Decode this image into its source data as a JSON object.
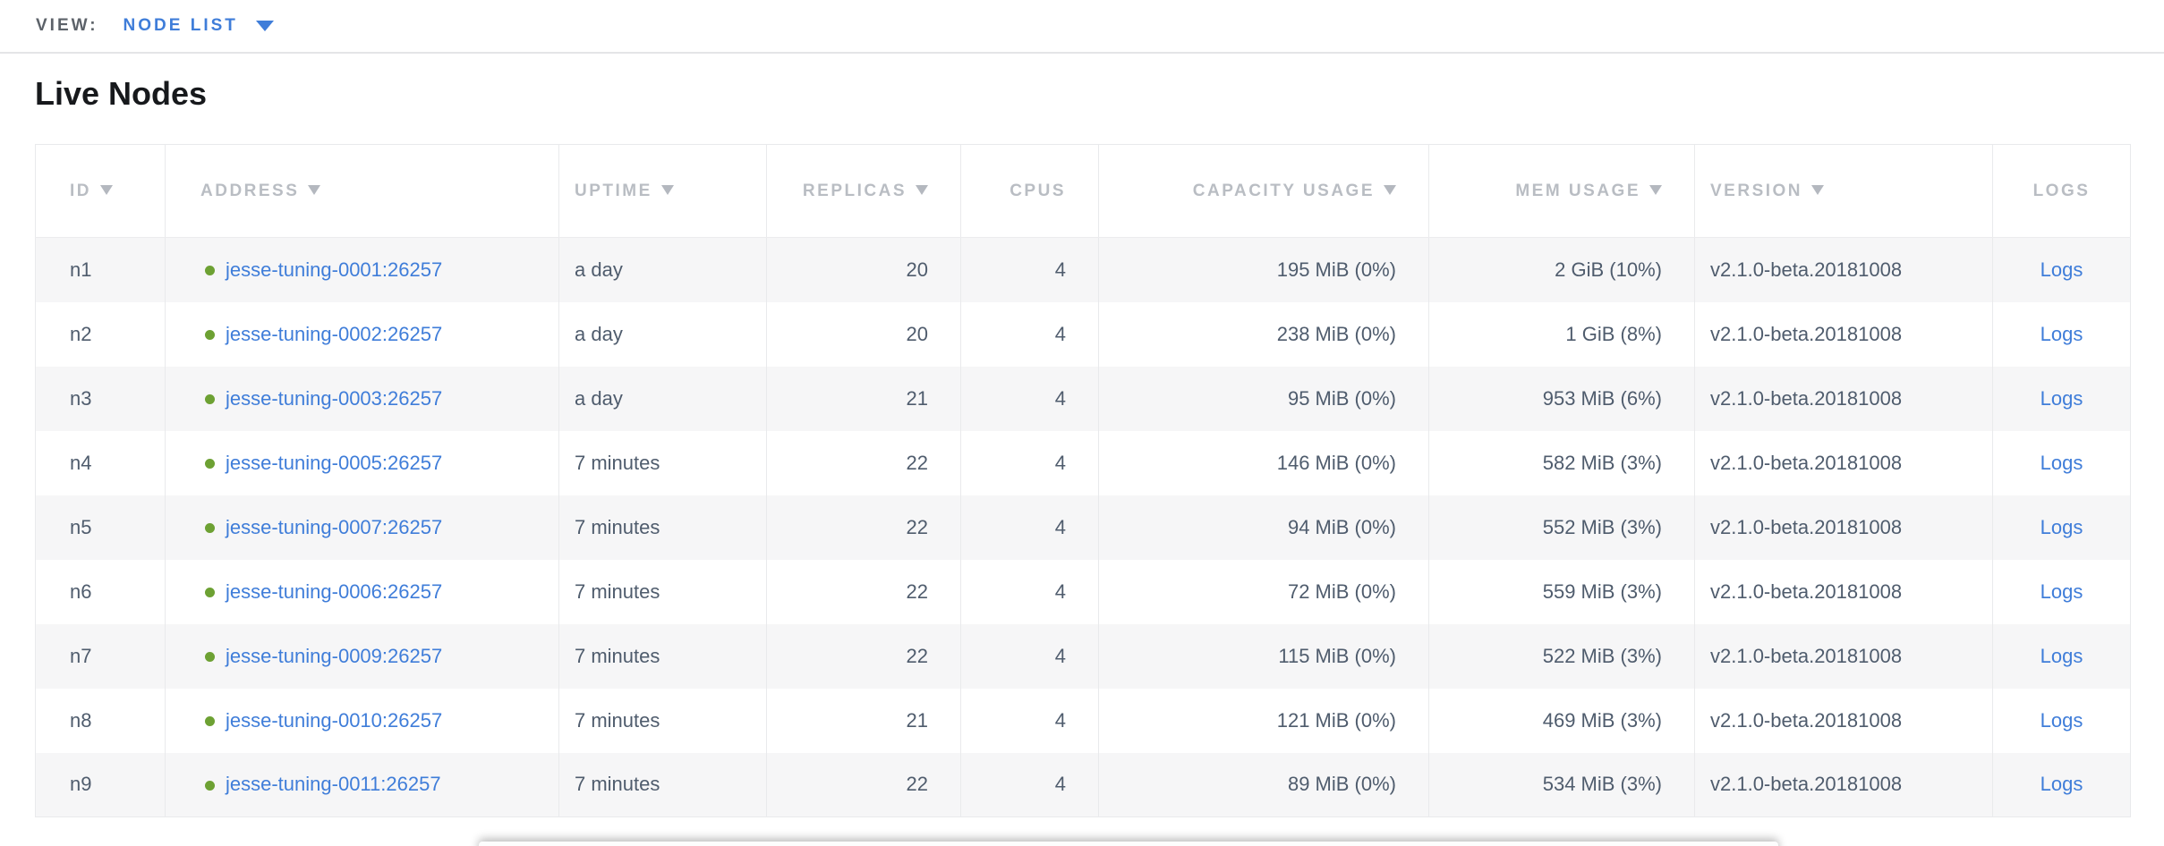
{
  "topbar": {
    "view_label": "VIEW:",
    "view_value": "NODE LIST"
  },
  "page": {
    "title": "Live Nodes"
  },
  "table": {
    "columns": [
      {
        "key": "id",
        "label": "ID",
        "sortable": true
      },
      {
        "key": "address",
        "label": "ADDRESS",
        "sortable": true
      },
      {
        "key": "uptime",
        "label": "UPTIME",
        "sortable": true
      },
      {
        "key": "replicas",
        "label": "REPLICAS",
        "sortable": true
      },
      {
        "key": "cpus",
        "label": "CPUS",
        "sortable": false
      },
      {
        "key": "capacity",
        "label": "CAPACITY USAGE",
        "sortable": true
      },
      {
        "key": "mem",
        "label": "MEM USAGE",
        "sortable": true
      },
      {
        "key": "version",
        "label": "VERSION",
        "sortable": true
      },
      {
        "key": "logs",
        "label": "LOGS",
        "sortable": false
      }
    ],
    "rows": [
      {
        "id": "n1",
        "status": "healthy",
        "address": "jesse-tuning-0001:26257",
        "uptime": "a day",
        "replicas": "20",
        "cpus": "4",
        "capacity": "195 MiB (0%)",
        "mem": "2 GiB (10%)",
        "version": "v2.1.0-beta.20181008",
        "logs": "Logs"
      },
      {
        "id": "n2",
        "status": "healthy",
        "address": "jesse-tuning-0002:26257",
        "uptime": "a day",
        "replicas": "20",
        "cpus": "4",
        "capacity": "238 MiB (0%)",
        "mem": "1 GiB (8%)",
        "version": "v2.1.0-beta.20181008",
        "logs": "Logs"
      },
      {
        "id": "n3",
        "status": "healthy",
        "address": "jesse-tuning-0003:26257",
        "uptime": "a day",
        "replicas": "21",
        "cpus": "4",
        "capacity": "95 MiB (0%)",
        "mem": "953 MiB (6%)",
        "version": "v2.1.0-beta.20181008",
        "logs": "Logs"
      },
      {
        "id": "n4",
        "status": "healthy",
        "address": "jesse-tuning-0005:26257",
        "uptime": "7 minutes",
        "replicas": "22",
        "cpus": "4",
        "capacity": "146 MiB (0%)",
        "mem": "582 MiB (3%)",
        "version": "v2.1.0-beta.20181008",
        "logs": "Logs"
      },
      {
        "id": "n5",
        "status": "healthy",
        "address": "jesse-tuning-0007:26257",
        "uptime": "7 minutes",
        "replicas": "22",
        "cpus": "4",
        "capacity": "94 MiB (0%)",
        "mem": "552 MiB (3%)",
        "version": "v2.1.0-beta.20181008",
        "logs": "Logs"
      },
      {
        "id": "n6",
        "status": "healthy",
        "address": "jesse-tuning-0006:26257",
        "uptime": "7 minutes",
        "replicas": "22",
        "cpus": "4",
        "capacity": "72 MiB (0%)",
        "mem": "559 MiB (3%)",
        "version": "v2.1.0-beta.20181008",
        "logs": "Logs"
      },
      {
        "id": "n7",
        "status": "healthy",
        "address": "jesse-tuning-0009:26257",
        "uptime": "7 minutes",
        "replicas": "22",
        "cpus": "4",
        "capacity": "115 MiB (0%)",
        "mem": "522 MiB (3%)",
        "version": "v2.1.0-beta.20181008",
        "logs": "Logs"
      },
      {
        "id": "n8",
        "status": "healthy",
        "address": "jesse-tuning-0010:26257",
        "uptime": "7 minutes",
        "replicas": "21",
        "cpus": "4",
        "capacity": "121 MiB (0%)",
        "mem": "469 MiB (3%)",
        "version": "v2.1.0-beta.20181008",
        "logs": "Logs"
      },
      {
        "id": "n9",
        "status": "healthy",
        "address": "jesse-tuning-0011:26257",
        "uptime": "7 minutes",
        "replicas": "22",
        "cpus": "4",
        "capacity": "89 MiB (0%)",
        "mem": "534 MiB (3%)",
        "version": "v2.1.0-beta.20181008",
        "logs": "Logs"
      }
    ]
  },
  "colors": {
    "link_blue": "#3f7dd9",
    "healthy_dot_green": "#6da133",
    "header_text_gray": "#b9bdc3",
    "cell_text": "#4f5c6d",
    "row_stripe": "#f6f6f7"
  }
}
